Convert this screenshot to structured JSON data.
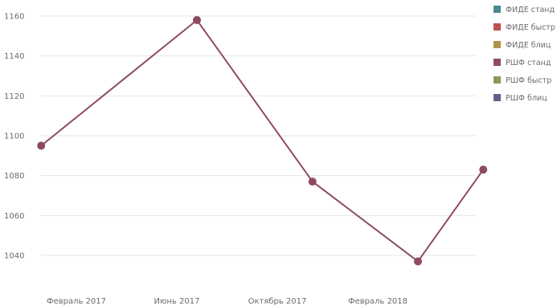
{
  "chart_data": {
    "type": "line",
    "title": "",
    "xlabel": "",
    "ylabel": "",
    "ylim": [
      1030,
      1165
    ],
    "yticks": [
      1040,
      1060,
      1080,
      1100,
      1120,
      1140,
      1160
    ],
    "grid": true,
    "legend_position": "right",
    "x_tick_labels": [
      "Февраль 2017",
      "Июнь 2017",
      "Октябрь 2017",
      "Февраль 2018"
    ],
    "x_tick_positions": [
      0,
      1,
      2,
      3
    ],
    "legend": [
      {
        "label": "ФИДЕ станд",
        "color": "#4a8a8f"
      },
      {
        "label": "ФИДЕ быстр",
        "color": "#c0504d"
      },
      {
        "label": "ФИДЕ блиц",
        "color": "#b0924a"
      },
      {
        "label": "РШФ станд",
        "color": "#8e4a63"
      },
      {
        "label": "РШФ быстр",
        "color": "#8a9a5b"
      },
      {
        "label": "РШФ блиц",
        "color": "#6b5b8a"
      }
    ],
    "series": [
      {
        "name": "РШФ станд",
        "color": "#8e4a63",
        "points": [
          {
            "x": -0.35,
            "y": 1095
          },
          {
            "x": 1.2,
            "y": 1158
          },
          {
            "x": 2.35,
            "y": 1077
          },
          {
            "x": 3.4,
            "y": 1037
          },
          {
            "x": 4.05,
            "y": 1083
          }
        ]
      }
    ]
  }
}
